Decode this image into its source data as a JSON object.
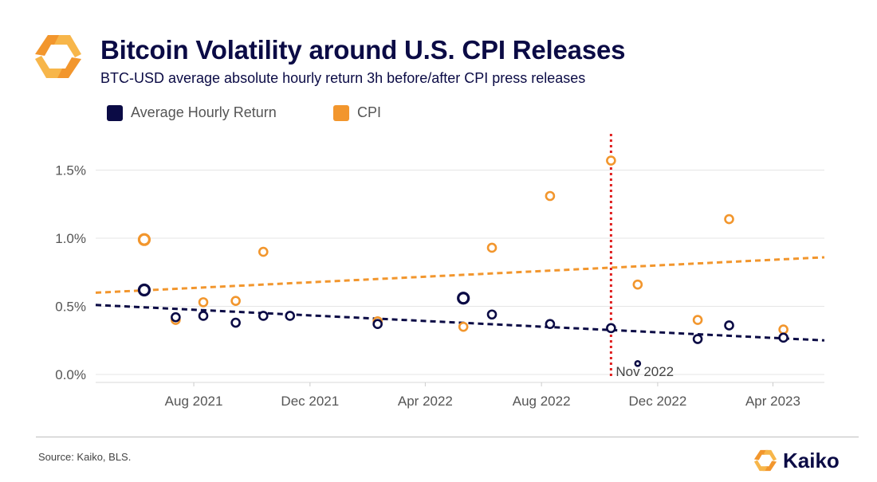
{
  "header": {
    "title": "Bitcoin Volatility around U.S. CPI Releases",
    "subtitle": "BTC-USD average absolute hourly return 3h before/after CPI press releases"
  },
  "legend": {
    "items": [
      {
        "label": "Average Hourly Return",
        "color": "#0b0b45"
      },
      {
        "label": "CPI",
        "color": "#f2962d"
      }
    ]
  },
  "footer": {
    "source": "Source: Kaiko, BLS.",
    "brand": "Kaiko"
  },
  "colors": {
    "navy": "#0b0b45",
    "orange": "#f2962d",
    "annotation_line": "#e02020",
    "grid": "#e6e6e6"
  },
  "chart_data": {
    "type": "scatter",
    "title": "Bitcoin Volatility around U.S. CPI Releases",
    "subtitle": "BTC-USD average absolute hourly return 3h before/after CPI press releases",
    "xlabel": "",
    "ylabel": "",
    "x_ticks": [
      "Aug 2021",
      "Dec 2021",
      "Apr 2022",
      "Aug 2022",
      "Dec 2022",
      "Apr 2023"
    ],
    "y_ticks": [
      "0.0%",
      "0.5%",
      "1.0%",
      "1.5%"
    ],
    "xlim": [
      "2021-04-20",
      "2023-05-25"
    ],
    "ylim": [
      0,
      1.6
    ],
    "y_unit": "%",
    "grid": "horizontal",
    "legend_position": "top-left",
    "series": [
      {
        "name": "Average Hourly Return",
        "color": "#0b0b45",
        "points": [
          {
            "date": "2021-06-10",
            "value": 0.62
          },
          {
            "date": "2021-07-13",
            "value": 0.42
          },
          {
            "date": "2021-08-11",
            "value": 0.43
          },
          {
            "date": "2021-09-14",
            "value": 0.38
          },
          {
            "date": "2021-10-13",
            "value": 0.43
          },
          {
            "date": "2021-11-10",
            "value": 0.43
          },
          {
            "date": "2022-02-10",
            "value": 0.37
          },
          {
            "date": "2022-05-11",
            "value": 0.56
          },
          {
            "date": "2022-06-10",
            "value": 0.44
          },
          {
            "date": "2022-08-10",
            "value": 0.37
          },
          {
            "date": "2022-10-13",
            "value": 0.34
          },
          {
            "date": "2022-11-10",
            "value": 0.08
          },
          {
            "date": "2023-01-12",
            "value": 0.26
          },
          {
            "date": "2023-02-14",
            "value": 0.36
          },
          {
            "date": "2023-04-12",
            "value": 0.27
          }
        ],
        "trendline": [
          {
            "date": "2021-04-20",
            "value": 0.51
          },
          {
            "date": "2023-05-25",
            "value": 0.25
          }
        ]
      },
      {
        "name": "CPI",
        "color": "#f2962d",
        "points": [
          {
            "date": "2021-06-10",
            "value": 0.99
          },
          {
            "date": "2021-07-13",
            "value": 0.4
          },
          {
            "date": "2021-08-11",
            "value": 0.53
          },
          {
            "date": "2021-09-14",
            "value": 0.54
          },
          {
            "date": "2021-10-13",
            "value": 0.9
          },
          {
            "date": "2022-02-10",
            "value": 0.39
          },
          {
            "date": "2022-05-11",
            "value": 0.35
          },
          {
            "date": "2022-06-10",
            "value": 0.93
          },
          {
            "date": "2022-08-10",
            "value": 1.31
          },
          {
            "date": "2022-10-13",
            "value": 1.57
          },
          {
            "date": "2022-11-10",
            "value": 0.66
          },
          {
            "date": "2023-01-12",
            "value": 0.4
          },
          {
            "date": "2023-02-14",
            "value": 1.14
          },
          {
            "date": "2023-04-12",
            "value": 0.33
          }
        ],
        "trendline": [
          {
            "date": "2021-04-20",
            "value": 0.6
          },
          {
            "date": "2023-05-25",
            "value": 0.86
          }
        ]
      }
    ],
    "annotations": [
      {
        "type": "vertical-line",
        "date": "2022-10-13",
        "label": "Nov 2022",
        "style": "dotted",
        "color": "#e02020"
      }
    ]
  }
}
